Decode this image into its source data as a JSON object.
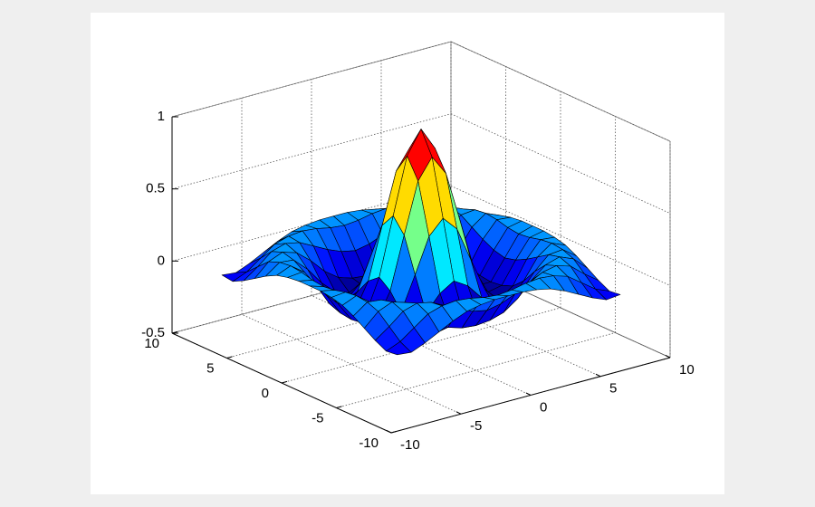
{
  "chart_data": {
    "type": "surface",
    "colormap": "jet",
    "grid": true,
    "edgecolor": "#000000",
    "x": [
      -8,
      -7,
      -6,
      -5,
      -4,
      -3,
      -2,
      -1,
      0,
      1,
      2,
      3,
      4,
      5,
      6,
      7,
      8
    ],
    "y": [
      -8,
      -7,
      -6,
      -5,
      -4,
      -3,
      -2,
      -1,
      0,
      1,
      2,
      3,
      4,
      5,
      6,
      7,
      8
    ],
    "z": [
      [
        -0.08,
        -0.09,
        -0.05,
        0,
        0.05,
        0.09,
        0.11,
        0.12,
        0.12,
        0.12,
        0.11,
        0.09,
        0.05,
        0,
        -0.05,
        -0.09,
        -0.08
      ],
      [
        -0.09,
        -0.05,
        0.02,
        0.09,
        0.12,
        0.13,
        0.12,
        0.1,
        0.09,
        0.1,
        0.12,
        0.13,
        0.12,
        0.09,
        0.02,
        -0.05,
        -0.09
      ],
      [
        -0.05,
        0.02,
        0.1,
        0.13,
        0.11,
        0.06,
        0.01,
        -0.03,
        -0.05,
        -0.03,
        0.01,
        0.06,
        0.11,
        0.13,
        0.1,
        0.02,
        -0.05
      ],
      [
        0,
        0.09,
        0.13,
        0.1,
        0.02,
        -0.08,
        -0.15,
        -0.18,
        -0.19,
        -0.18,
        -0.15,
        -0.08,
        0.02,
        0.1,
        0.13,
        0.09,
        0
      ],
      [
        0.05,
        0.12,
        0.11,
        0.02,
        -0.1,
        -0.19,
        -0.22,
        -0.2,
        -0.19,
        -0.2,
        -0.22,
        -0.19,
        -0.1,
        0.02,
        0.11,
        0.12,
        0.05
      ],
      [
        0.09,
        0.13,
        0.06,
        -0.08,
        -0.19,
        -0.21,
        -0.12,
        -0.01,
        0.05,
        -0.01,
        -0.12,
        -0.21,
        -0.19,
        -0.08,
        0.06,
        0.13,
        0.09
      ],
      [
        0.11,
        0.12,
        0.01,
        -0.15,
        -0.22,
        -0.12,
        0.11,
        0.35,
        0.45,
        0.35,
        0.11,
        -0.12,
        -0.22,
        -0.15,
        0.01,
        0.12,
        0.11
      ],
      [
        0.12,
        0.1,
        -0.03,
        -0.18,
        -0.2,
        -0.01,
        0.35,
        0.7,
        0.84,
        0.7,
        0.35,
        -0.01,
        -0.2,
        -0.18,
        -0.03,
        0.1,
        0.12
      ],
      [
        0.12,
        0.09,
        -0.05,
        -0.19,
        -0.19,
        0.05,
        0.45,
        0.84,
        1,
        0.84,
        0.45,
        0.05,
        -0.19,
        -0.19,
        -0.05,
        0.09,
        0.12
      ],
      [
        0.12,
        0.1,
        -0.03,
        -0.18,
        -0.2,
        -0.01,
        0.35,
        0.7,
        0.84,
        0.7,
        0.35,
        -0.01,
        -0.2,
        -0.18,
        -0.03,
        0.1,
        0.12
      ],
      [
        0.11,
        0.12,
        0.01,
        -0.15,
        -0.22,
        -0.12,
        0.11,
        0.35,
        0.45,
        0.35,
        0.11,
        -0.12,
        -0.22,
        -0.15,
        0.01,
        0.12,
        0.11
      ],
      [
        0.09,
        0.13,
        0.06,
        -0.08,
        -0.19,
        -0.21,
        -0.12,
        -0.01,
        0.05,
        -0.01,
        -0.12,
        -0.21,
        -0.19,
        -0.08,
        0.06,
        0.13,
        0.09
      ],
      [
        0.05,
        0.12,
        0.11,
        0.02,
        -0.1,
        -0.19,
        -0.22,
        -0.2,
        -0.19,
        -0.2,
        -0.22,
        -0.19,
        -0.1,
        0.02,
        0.11,
        0.12,
        0.05
      ],
      [
        0,
        0.09,
        0.13,
        0.1,
        0.02,
        -0.08,
        -0.15,
        -0.18,
        -0.19,
        -0.18,
        -0.15,
        -0.08,
        0.02,
        0.1,
        0.13,
        0.09,
        0
      ],
      [
        -0.05,
        0.02,
        0.1,
        0.13,
        0.11,
        0.06,
        0.01,
        -0.03,
        -0.05,
        -0.03,
        0.01,
        0.06,
        0.11,
        0.13,
        0.1,
        0.02,
        -0.05
      ],
      [
        -0.09,
        -0.05,
        0.02,
        0.09,
        0.12,
        0.13,
        0.12,
        0.1,
        0.09,
        0.1,
        0.12,
        0.13,
        0.12,
        0.09,
        0.02,
        -0.05,
        -0.09
      ],
      [
        -0.08,
        -0.09,
        -0.05,
        0,
        0.05,
        0.09,
        0.11,
        0.12,
        0.12,
        0.12,
        0.11,
        0.09,
        0.05,
        0,
        -0.05,
        -0.09,
        -0.08
      ]
    ],
    "xlim": [
      -10,
      10
    ],
    "ylim": [
      -10,
      10
    ],
    "zlim": [
      -0.5,
      1
    ],
    "xticks": [
      -10,
      -5,
      0,
      5,
      10
    ],
    "yticks": [
      -10,
      -5,
      0,
      5,
      10
    ],
    "zticks": [
      -0.5,
      0,
      0.5,
      1
    ]
  }
}
